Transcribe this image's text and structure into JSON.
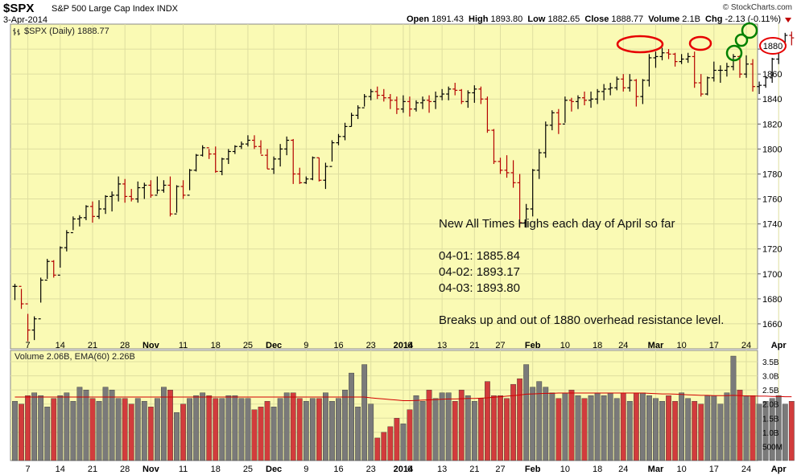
{
  "header": {
    "ticker": "$SPX",
    "name": "S&P 500 Large Cap Index",
    "exchange": "INDX",
    "date": "3-Apr-2014",
    "credit": "© StockCharts.com",
    "open_label": "Open",
    "open": "1891.43",
    "high_label": "High",
    "high": "1893.80",
    "low_label": "Low",
    "low": "1882.65",
    "close_label": "Close",
    "close": "1888.77",
    "volume_label": "Volume",
    "volume": "2.1B",
    "chg_label": "Chg",
    "chg": "-2.13 (-0.11%)"
  },
  "price_panel": {
    "legend": "$SPX (Daily) 1888.77",
    "current_tag": "1880"
  },
  "volume_panel": {
    "legend": "Volume 2.06B, EMA(60) 2.26B"
  },
  "annotation": {
    "line1": "New All Times Highs each day of April so far",
    "line2": "04-01: 1885.84",
    "line3": "04-02: 1893.17",
    "line4": "04-03: 1893.80",
    "line5": "Breaks up and out of 1880 overhead resistance level."
  },
  "colors": {
    "background": "#fafab4",
    "up": "#000000",
    "down": "#b40000",
    "vol_up": "#7a7a7a",
    "vol_down": "#d23c3c",
    "ema": "#d20000",
    "red_circle": "#e60000",
    "green_circle": "#008000"
  },
  "chart_data": {
    "type": "ohlc",
    "price_ylim": [
      1640,
      1900
    ],
    "price_yticks": [
      1660,
      1680,
      1700,
      1720,
      1740,
      1760,
      1780,
      1800,
      1820,
      1840,
      1860,
      1880
    ],
    "volume_yticks": [
      "500M",
      "1.0B",
      "1.5B",
      "2.0B",
      "2.5B",
      "3.0B",
      "3.5B"
    ],
    "volume_ylim": [
      0,
      3.9
    ],
    "x_labels": [
      {
        "i": 2,
        "t": "7",
        "b": false
      },
      {
        "i": 7,
        "t": "14",
        "b": false
      },
      {
        "i": 12,
        "t": "21",
        "b": false
      },
      {
        "i": 17,
        "t": "28",
        "b": false
      },
      {
        "i": 21,
        "t": "Nov",
        "b": true
      },
      {
        "i": 26,
        "t": "11",
        "b": false
      },
      {
        "i": 31,
        "t": "18",
        "b": false
      },
      {
        "i": 36,
        "t": "25",
        "b": false
      },
      {
        "i": 40,
        "t": "Dec",
        "b": true
      },
      {
        "i": 45,
        "t": "9",
        "b": false
      },
      {
        "i": 50,
        "t": "16",
        "b": false
      },
      {
        "i": 55,
        "t": "23",
        "b": false
      },
      {
        "i": 60,
        "t": "2014",
        "b": true
      },
      {
        "i": 61,
        "t": "6",
        "b": false
      },
      {
        "i": 66,
        "t": "13",
        "b": false
      },
      {
        "i": 71,
        "t": "21",
        "b": false
      },
      {
        "i": 75,
        "t": "27",
        "b": false
      },
      {
        "i": 80,
        "t": "Feb",
        "b": true
      },
      {
        "i": 85,
        "t": "10",
        "b": false
      },
      {
        "i": 90,
        "t": "18",
        "b": false
      },
      {
        "i": 94,
        "t": "24",
        "b": false
      },
      {
        "i": 99,
        "t": "Mar",
        "b": true
      },
      {
        "i": 103,
        "t": "10",
        "b": false
      },
      {
        "i": 108,
        "t": "17",
        "b": false
      },
      {
        "i": 113,
        "t": "24",
        "b": false
      },
      {
        "i": 118,
        "t": "Apr",
        "b": true
      }
    ],
    "close": [
      1690,
      1676,
      1655,
      1664,
      1695,
      1710,
      1699,
      1721,
      1733,
      1744,
      1745,
      1754,
      1746,
      1752,
      1762,
      1763,
      1772,
      1762,
      1760,
      1769,
      1771,
      1763,
      1767,
      1771,
      1748,
      1770,
      1763,
      1783,
      1795,
      1801,
      1796,
      1782,
      1792,
      1798,
      1802,
      1804,
      1807,
      1802,
      1795,
      1784,
      1792,
      1800,
      1807,
      1780,
      1773,
      1776,
      1793,
      1775,
      1786,
      1805,
      1810,
      1818,
      1827,
      1833,
      1842,
      1846,
      1843,
      1841,
      1839,
      1832,
      1838,
      1832,
      1837,
      1839,
      1838,
      1842,
      1844,
      1848,
      1847,
      1838,
      1845,
      1848,
      1840,
      1815,
      1790,
      1783,
      1781,
      1773,
      1741,
      1752,
      1783,
      1797,
      1819,
      1829,
      1820,
      1839,
      1838,
      1841,
      1839,
      1840,
      1846,
      1848,
      1849,
      1856,
      1849,
      1855,
      1842,
      1855,
      1873,
      1874,
      1877,
      1876,
      1870,
      1872,
      1874,
      1853,
      1844,
      1857,
      1863,
      1863,
      1866,
      1874,
      1860,
      1868,
      1850,
      1851,
      1857,
      1872,
      1885,
      1891,
      1889
    ],
    "high": [
      1692,
      1688,
      1668,
      1666,
      1697,
      1712,
      1711,
      1722,
      1735,
      1746,
      1747,
      1755,
      1758,
      1759,
      1763,
      1766,
      1778,
      1776,
      1768,
      1774,
      1773,
      1775,
      1778,
      1775,
      1778,
      1771,
      1775,
      1784,
      1796,
      1803,
      1800,
      1802,
      1793,
      1800,
      1803,
      1806,
      1811,
      1811,
      1807,
      1800,
      1794,
      1804,
      1810,
      1808,
      1785,
      1778,
      1794,
      1793,
      1789,
      1807,
      1812,
      1821,
      1829,
      1835,
      1844,
      1848,
      1850,
      1848,
      1844,
      1842,
      1843,
      1842,
      1839,
      1842,
      1843,
      1846,
      1848,
      1850,
      1853,
      1848,
      1847,
      1851,
      1850,
      1842,
      1816,
      1793,
      1795,
      1791,
      1780,
      1756,
      1784,
      1800,
      1822,
      1831,
      1832,
      1842,
      1841,
      1843,
      1846,
      1846,
      1848,
      1852,
      1853,
      1858,
      1860,
      1860,
      1856,
      1856,
      1876,
      1878,
      1881,
      1880,
      1877,
      1876,
      1877,
      1878,
      1860,
      1858,
      1870,
      1867,
      1869,
      1876,
      1875,
      1875,
      1872,
      1854,
      1858,
      1873,
      1886,
      1893,
      1894
    ],
    "low": [
      1679,
      1672,
      1646,
      1647,
      1677,
      1696,
      1697,
      1705,
      1718,
      1735,
      1738,
      1743,
      1741,
      1744,
      1748,
      1750,
      1758,
      1757,
      1758,
      1757,
      1760,
      1761,
      1764,
      1765,
      1746,
      1749,
      1760,
      1767,
      1782,
      1794,
      1792,
      1781,
      1779,
      1788,
      1796,
      1800,
      1802,
      1800,
      1796,
      1784,
      1780,
      1786,
      1795,
      1772,
      1772,
      1772,
      1775,
      1774,
      1768,
      1790,
      1803,
      1807,
      1818,
      1824,
      1834,
      1839,
      1840,
      1838,
      1832,
      1828,
      1829,
      1826,
      1830,
      1832,
      1829,
      1832,
      1839,
      1839,
      1843,
      1836,
      1833,
      1837,
      1836,
      1813,
      1788,
      1780,
      1777,
      1769,
      1737,
      1737,
      1746,
      1776,
      1793,
      1815,
      1812,
      1821,
      1830,
      1832,
      1835,
      1833,
      1836,
      1839,
      1843,
      1847,
      1846,
      1846,
      1834,
      1836,
      1850,
      1865,
      1871,
      1872,
      1866,
      1868,
      1869,
      1849,
      1842,
      1843,
      1854,
      1853,
      1858,
      1863,
      1857,
      1857,
      1846,
      1844,
      1849,
      1853,
      1868,
      1882,
      1883
    ],
    "volume": [
      2.1,
      2.0,
      2.3,
      2.4,
      2.3,
      1.9,
      2.2,
      2.3,
      2.4,
      2.1,
      2.6,
      2.5,
      2.2,
      2.1,
      2.6,
      2.5,
      2.2,
      2.2,
      2.0,
      2.2,
      2.1,
      1.9,
      2.2,
      2.6,
      2.5,
      1.7,
      2.0,
      2.2,
      2.3,
      2.4,
      2.3,
      2.2,
      2.2,
      2.3,
      2.3,
      2.2,
      2.2,
      1.8,
      1.9,
      2.1,
      1.9,
      2.2,
      2.4,
      2.4,
      2.2,
      2.1,
      2.2,
      2.2,
      2.4,
      2.1,
      2.2,
      2.5,
      3.1,
      1.9,
      3.4,
      2.0,
      0.8,
      1.0,
      1.2,
      1.5,
      1.3,
      1.8,
      2.3,
      2.1,
      2.5,
      2.2,
      2.4,
      2.4,
      2.1,
      2.5,
      2.3,
      2.1,
      2.2,
      2.8,
      2.3,
      2.3,
      2.2,
      2.7,
      2.9,
      3.4,
      2.6,
      2.8,
      2.6,
      2.4,
      2.2,
      2.4,
      2.5,
      2.3,
      2.2,
      2.3,
      2.4,
      2.3,
      2.4,
      2.2,
      2.4,
      2.1,
      2.4,
      2.4,
      2.3,
      2.2,
      2.1,
      2.3,
      2.1,
      2.4,
      2.2,
      2.1,
      2.0,
      2.3,
      2.3,
      2.0,
      2.4,
      3.7,
      2.5,
      2.3,
      2.3,
      2.0,
      2.1,
      2.2,
      2.3,
      2.0,
      2.1
    ],
    "ema60": [
      2.25,
      2.25,
      2.25,
      2.25,
      2.25,
      2.25,
      2.25,
      2.25,
      2.25,
      2.25,
      2.25,
      2.25,
      2.25,
      2.25,
      2.25,
      2.25,
      2.25,
      2.25,
      2.25,
      2.25,
      2.25,
      2.25,
      2.25,
      2.25,
      2.25,
      2.25,
      2.25,
      2.25,
      2.25,
      2.25,
      2.25,
      2.25,
      2.25,
      2.25,
      2.25,
      2.25,
      2.25,
      2.25,
      2.25,
      2.25,
      2.25,
      2.25,
      2.25,
      2.25,
      2.25,
      2.25,
      2.25,
      2.25,
      2.25,
      2.25,
      2.25,
      2.25,
      2.25,
      2.25,
      2.25,
      2.22,
      2.2,
      2.18,
      2.16,
      2.14,
      2.12,
      2.12,
      2.13,
      2.14,
      2.15,
      2.16,
      2.17,
      2.18,
      2.18,
      2.19,
      2.2,
      2.2,
      2.21,
      2.22,
      2.24,
      2.26,
      2.28,
      2.3,
      2.32,
      2.35,
      2.36,
      2.37,
      2.38,
      2.38,
      2.39,
      2.39,
      2.39,
      2.39,
      2.39,
      2.39,
      2.39,
      2.39,
      2.39,
      2.39,
      2.39,
      2.39,
      2.39,
      2.39,
      2.38,
      2.37,
      2.36,
      2.36,
      2.35,
      2.34,
      2.33,
      2.32,
      2.31,
      2.31,
      2.3,
      2.3,
      2.3,
      2.31,
      2.3,
      2.29,
      2.29,
      2.28,
      2.28,
      2.27,
      2.27,
      2.26,
      2.26
    ],
    "series": [
      {
        "name": "$SPX (Daily)"
      },
      {
        "name": "Volume"
      },
      {
        "name": "EMA(60)"
      }
    ]
  }
}
